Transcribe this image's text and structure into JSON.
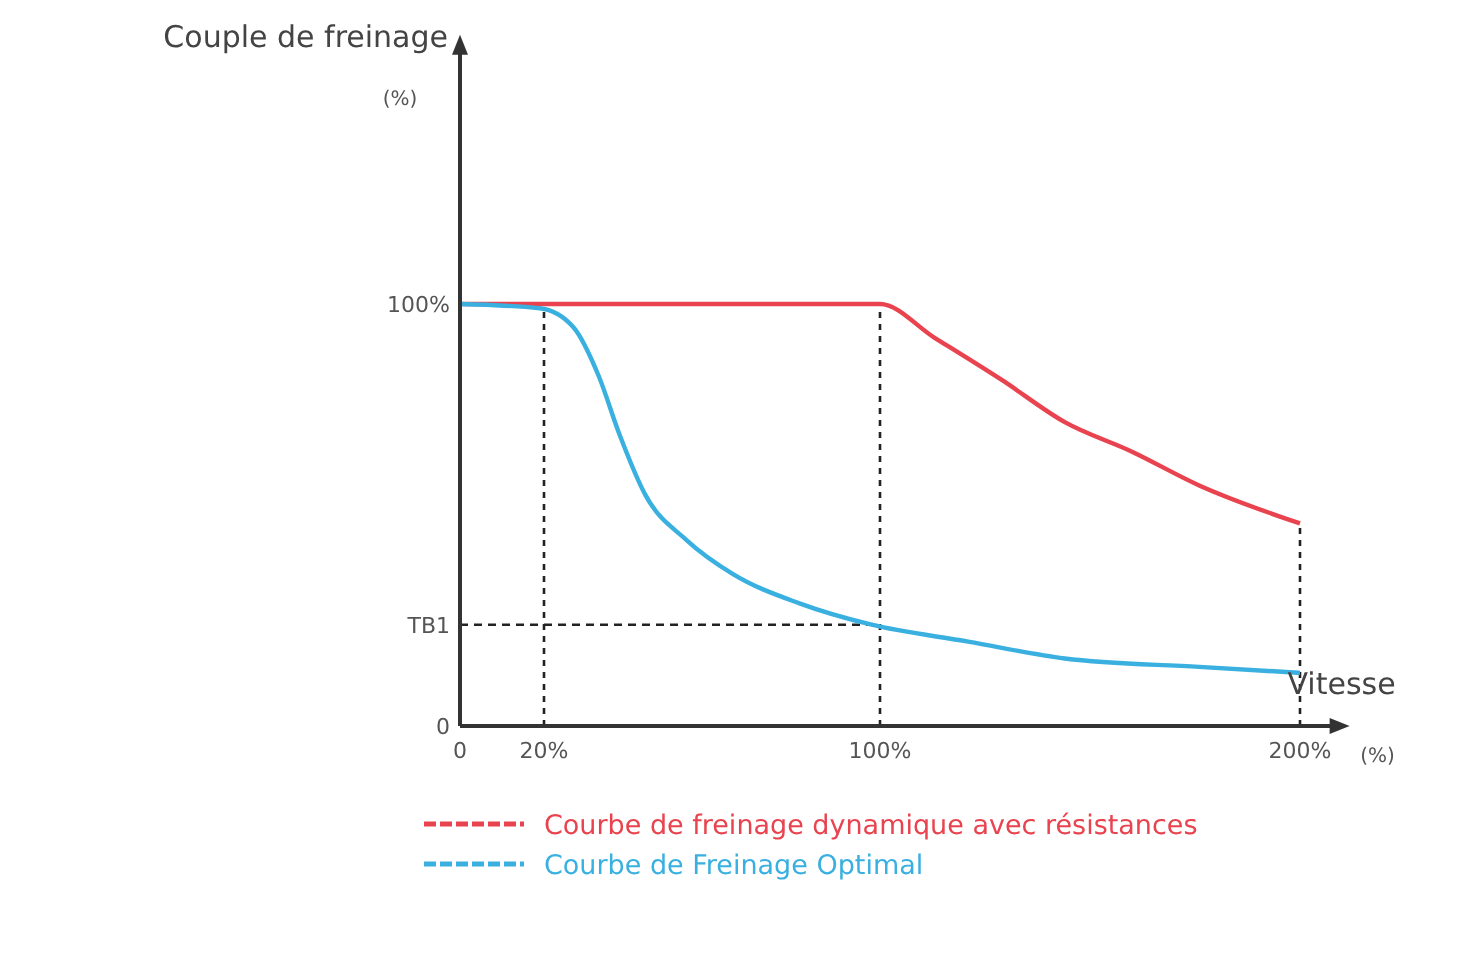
{
  "chart_data": {
    "type": "line",
    "ylabel": "Couple de freinage",
    "xlabel": "Vitesse",
    "annotations": [
      "(%)",
      "(%)"
    ],
    "xlim": [
      0,
      208
    ],
    "ylim": [
      0,
      160
    ],
    "xticks": [
      0,
      {
        "value": 20,
        "label": "20%"
      },
      {
        "value": 100,
        "label": "100%"
      },
      {
        "value": 200,
        "label": "200%"
      }
    ],
    "yticks": [
      0,
      {
        "value": 24,
        "label": "TB1"
      },
      {
        "value": 100,
        "label": "100%"
      }
    ],
    "series": [
      {
        "name": "Courbe de freinage dynamique avec résistances",
        "color": "#e8434e",
        "x": [
          0,
          100,
          113,
          129,
          144,
          160,
          176,
          200
        ],
        "values": [
          100,
          100,
          92,
          82,
          72,
          65,
          57,
          48
        ]
      },
      {
        "name": "Courbe de Freinage Optimal",
        "color": "#3ab0e0",
        "x": [
          0,
          19,
          27,
          33,
          38,
          44,
          54,
          65,
          81,
          98,
          121,
          144,
          176,
          200
        ],
        "values": [
          100,
          99,
          94.5,
          83,
          69,
          55,
          44,
          36,
          29,
          24,
          20,
          16,
          14,
          12.6
        ]
      }
    ],
    "ref_lines": [
      {
        "axis": "x",
        "value": 20,
        "label": null
      },
      {
        "axis": "x",
        "value": 100,
        "label": null
      },
      {
        "axis": "x",
        "value": 200,
        "label": null
      },
      {
        "axis": "y",
        "value": 24,
        "label": null
      }
    ],
    "legend": "bottom",
    "grid": false,
    "marker": "none",
    "line_style": "solid"
  }
}
